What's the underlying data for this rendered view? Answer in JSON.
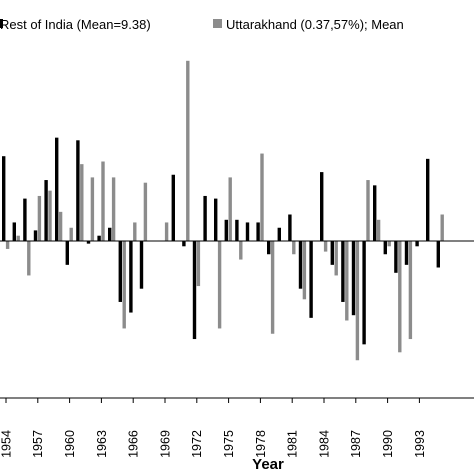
{
  "chart_data": {
    "type": "bar",
    "xlabel": "Year",
    "ylabel": "",
    "ylim": [
      -45,
      68
    ],
    "baseline": 0,
    "grid": false,
    "legend_position": "top",
    "tick_labels": [
      "1954",
      "1957",
      "1960",
      "1963",
      "1966",
      "1969",
      "1972",
      "1975",
      "1978",
      "1981",
      "1984",
      "1987",
      "1990",
      "1993"
    ],
    "years": [
      1954,
      1955,
      1956,
      1957,
      1958,
      1959,
      1960,
      1961,
      1962,
      1963,
      1964,
      1965,
      1966,
      1967,
      1968,
      1969,
      1970,
      1971,
      1972,
      1973,
      1974,
      1975,
      1976,
      1977,
      1978,
      1979,
      1980,
      1981,
      1982,
      1983,
      1984,
      1985,
      1986,
      1987,
      1988,
      1989,
      1990,
      1991,
      1992,
      1993,
      1994,
      1995
    ],
    "series": [
      {
        "name": "Rest of India (Mean=9.38)",
        "color": "#000000",
        "values": [
          32,
          7,
          16,
          4,
          23,
          39,
          -9,
          38,
          -1,
          2,
          5,
          -23,
          -27,
          -18,
          0,
          0,
          25,
          -2,
          -37,
          17,
          16,
          8,
          8,
          7,
          7,
          -5,
          5,
          10,
          -18,
          -29,
          26,
          -9,
          -23,
          -28,
          -39,
          21,
          -5,
          -12,
          -9,
          -2,
          31,
          -10
        ]
      },
      {
        "name": "Uttarakhand (0.37,57%); Mean",
        "color": "#8c8c8c",
        "values": [
          -3,
          2,
          -13,
          17,
          19,
          11,
          5,
          29,
          24,
          30,
          24,
          -33,
          7,
          22,
          0,
          7,
          0,
          68,
          -17,
          0,
          -33,
          24,
          -7,
          0,
          33,
          -35,
          0,
          -5,
          -22,
          0,
          -4,
          -13,
          -30,
          -45,
          23,
          8,
          -2,
          -42,
          -37,
          0,
          0,
          10
        ]
      }
    ]
  }
}
